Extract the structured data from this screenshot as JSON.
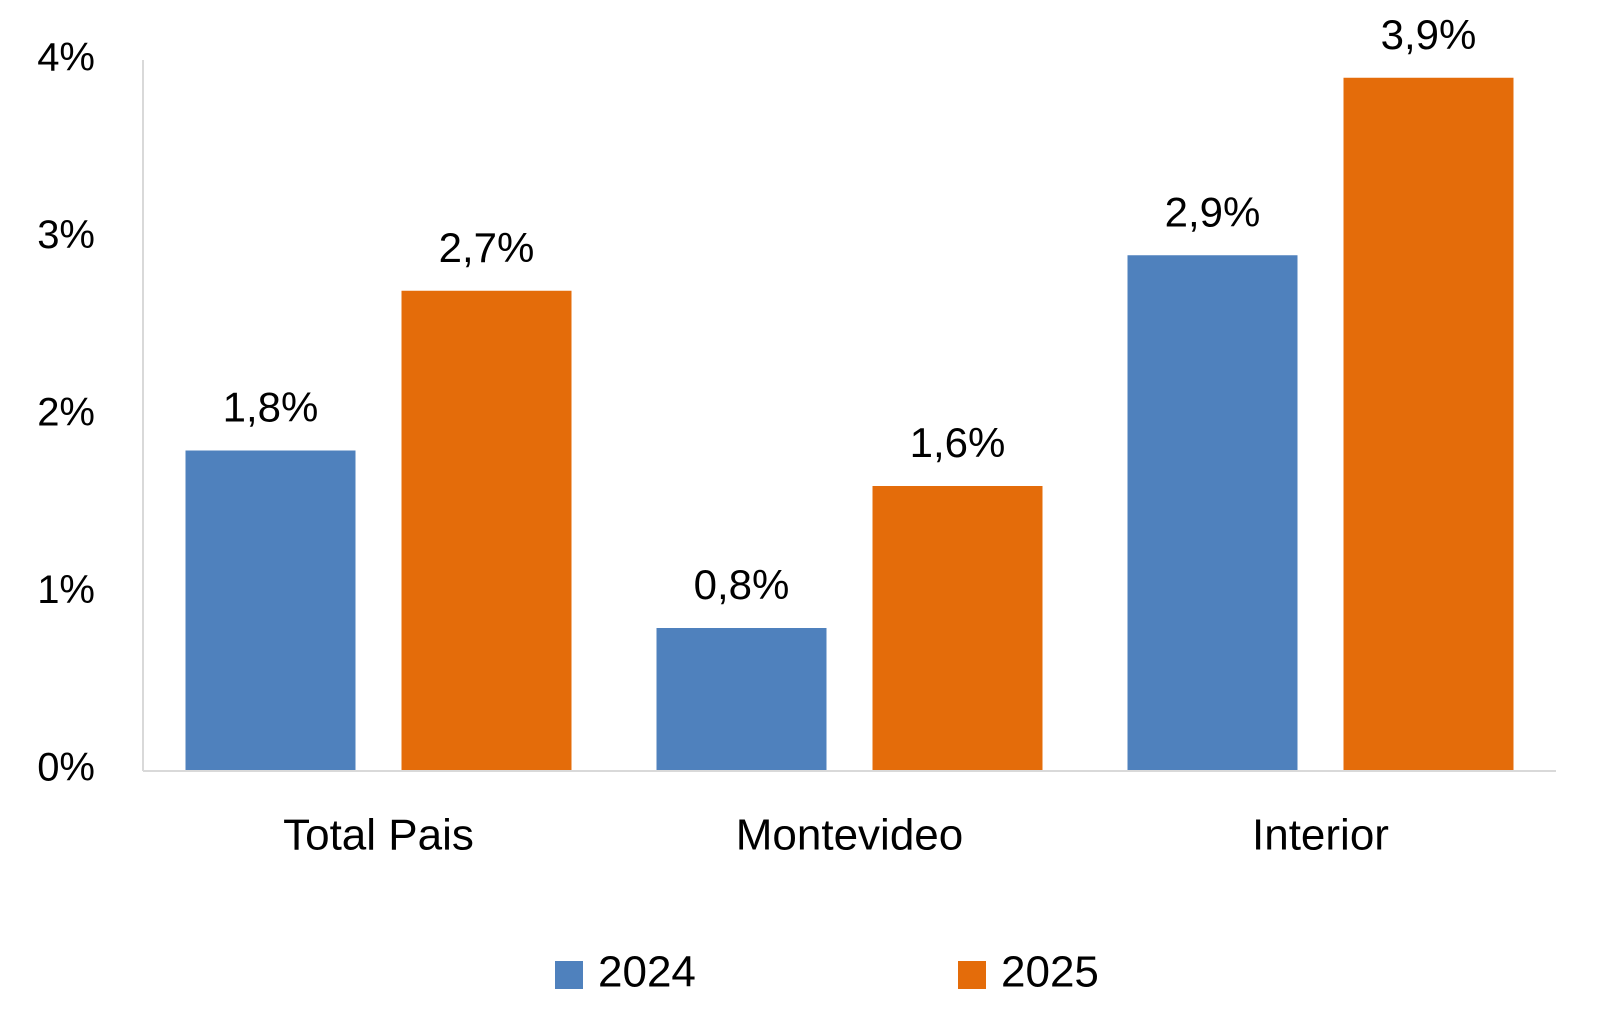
{
  "chart_data": {
    "type": "bar",
    "categories": [
      "Total Pais",
      "Montevideo",
      "Interior"
    ],
    "series": [
      {
        "name": "2024",
        "color": "#4f81bd",
        "values": [
          1.8,
          0.8,
          2.9
        ],
        "value_labels": [
          "1,8%",
          "0,8%",
          "2,9%"
        ]
      },
      {
        "name": "2025",
        "color": "#e46c0a",
        "values": [
          2.7,
          1.6,
          3.9
        ],
        "value_labels": [
          "2,7%",
          "1,6%",
          "3,9%"
        ]
      }
    ],
    "ylim": [
      0,
      4
    ],
    "yticks": [
      {
        "value": 0,
        "label": "0%"
      },
      {
        "value": 1,
        "label": "1%"
      },
      {
        "value": 2,
        "label": "2%"
      },
      {
        "value": 3,
        "label": "3%"
      },
      {
        "value": 4,
        "label": "4%"
      }
    ],
    "grid": false,
    "legend": "bottom"
  }
}
